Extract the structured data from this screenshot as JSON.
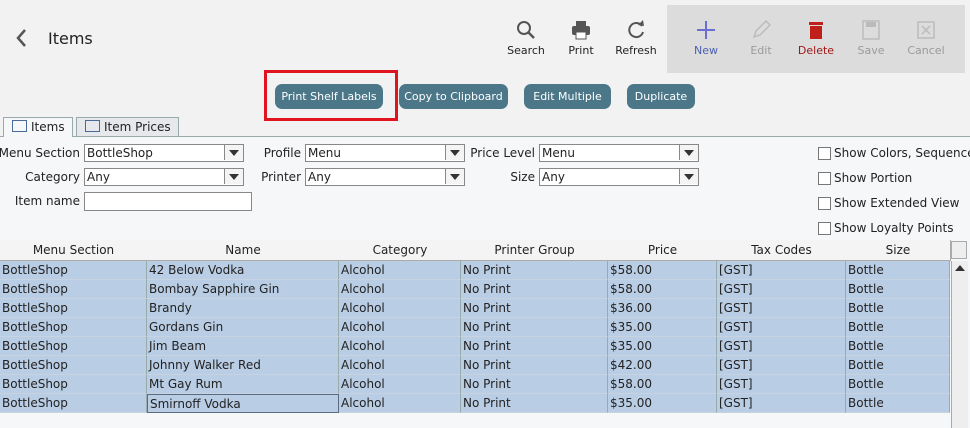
{
  "header": {
    "title": "Items"
  },
  "toolbar": [
    {
      "label": "Search"
    },
    {
      "label": "Print"
    },
    {
      "label": "Refresh"
    },
    {
      "label": "New"
    },
    {
      "label": "Edit"
    },
    {
      "label": "Delete"
    },
    {
      "label": "Save"
    },
    {
      "label": "Cancel"
    }
  ],
  "actions": [
    "Print Shelf Labels",
    "Copy to Clipboard",
    "Edit Multiple",
    "Duplicate"
  ],
  "tabs": [
    "Items",
    "Item Prices"
  ],
  "filters": [
    {
      "label": "Menu Section",
      "value": "BottleShop"
    },
    {
      "label": "Profile",
      "value": "Menu"
    },
    {
      "label": "Price Level",
      "value": "Menu"
    },
    {
      "label": "Category",
      "value": "Any"
    },
    {
      "label": "Printer",
      "value": "Any"
    },
    {
      "label": "Size",
      "value": "Any"
    },
    {
      "label": "Item name",
      "value": ""
    }
  ],
  "checkboxes": [
    "Show Colors, Sequence",
    "Show Portion",
    "Show Extended View",
    "Show Loyalty Points"
  ],
  "table": {
    "columns": [
      "Menu Section",
      "Name",
      "Category",
      "Printer Group",
      "Price",
      "Tax Codes",
      "Size"
    ],
    "rows": [
      [
        "BottleShop",
        "42 Below Vodka",
        "Alcohol",
        "No Print",
        "$58.00",
        "[GST]",
        "Bottle"
      ],
      [
        "BottleShop",
        "Bombay Sapphire Gin",
        "Alcohol",
        "No Print",
        "$58.00",
        "[GST]",
        "Bottle"
      ],
      [
        "BottleShop",
        "Brandy",
        "Alcohol",
        "No Print",
        "$36.00",
        "[GST]",
        "Bottle"
      ],
      [
        "BottleShop",
        "Gordans Gin",
        "Alcohol",
        "No Print",
        "$35.00",
        "[GST]",
        "Bottle"
      ],
      [
        "BottleShop",
        "Jim Beam",
        "Alcohol",
        "No Print",
        "$35.00",
        "[GST]",
        "Bottle"
      ],
      [
        "BottleShop",
        "Johnny Walker Red",
        "Alcohol",
        "No Print",
        "$42.00",
        "[GST]",
        "Bottle"
      ],
      [
        "BottleShop",
        "Mt Gay Rum",
        "Alcohol",
        "No Print",
        "$58.00",
        "[GST]",
        "Bottle"
      ],
      [
        "BottleShop",
        "Smirnoff Vodka",
        "Alcohol",
        "No Print",
        "$35.00",
        "[GST]",
        "Bottle"
      ]
    ]
  }
}
